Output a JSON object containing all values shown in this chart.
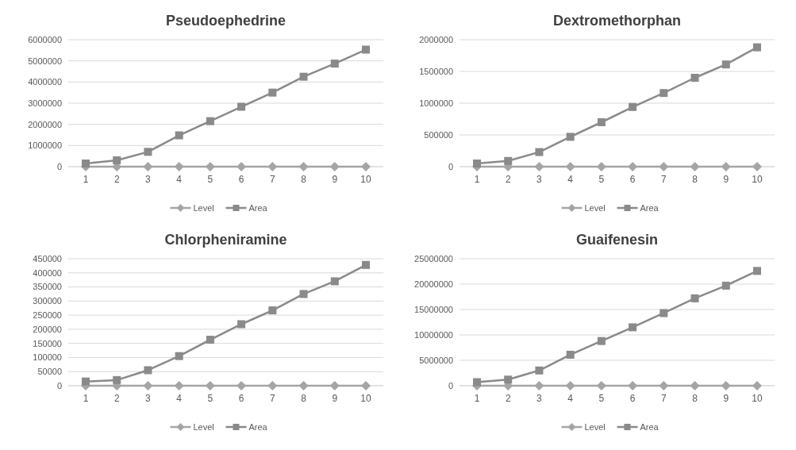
{
  "chart_data": [
    {
      "type": "line",
      "title": "Pseudoephedrine",
      "categories": [
        "1",
        "2",
        "3",
        "4",
        "5",
        "6",
        "7",
        "8",
        "9",
        "10"
      ],
      "ylim": [
        0,
        6000000
      ],
      "yticks": [
        0,
        1000000,
        2000000,
        3000000,
        4000000,
        5000000,
        6000000
      ],
      "grid": "y",
      "legend": "bottom",
      "line_style": "solid",
      "series": [
        {
          "name": "Level",
          "color": "#a5a5a5",
          "marker": "diamond",
          "values": [
            0,
            0,
            0,
            0,
            0,
            0,
            0,
            0,
            0,
            0
          ]
        },
        {
          "name": "Area",
          "color": "#8a8a8a",
          "marker": "square",
          "values": [
            150000,
            300000,
            700000,
            1480000,
            2150000,
            2830000,
            3500000,
            4250000,
            4870000,
            5530000
          ]
        }
      ]
    },
    {
      "type": "line",
      "title": "Dextromethorphan",
      "categories": [
        "1",
        "2",
        "3",
        "4",
        "5",
        "6",
        "7",
        "8",
        "9",
        "10"
      ],
      "ylim": [
        0,
        2000000
      ],
      "yticks": [
        0,
        500000,
        1000000,
        1500000,
        2000000
      ],
      "grid": "y",
      "legend": "bottom",
      "line_style": "solid",
      "series": [
        {
          "name": "Level",
          "color": "#a5a5a5",
          "marker": "diamond",
          "values": [
            0,
            0,
            0,
            0,
            0,
            0,
            0,
            0,
            0,
            0
          ]
        },
        {
          "name": "Area",
          "color": "#8a8a8a",
          "marker": "square",
          "values": [
            50000,
            90000,
            230000,
            470000,
            700000,
            940000,
            1160000,
            1400000,
            1610000,
            1880000
          ]
        }
      ]
    },
    {
      "type": "line",
      "title": "Chlorpheniramine",
      "categories": [
        "1",
        "2",
        "3",
        "4",
        "5",
        "6",
        "7",
        "8",
        "9",
        "10"
      ],
      "ylim": [
        0,
        450000
      ],
      "yticks": [
        0,
        50000,
        100000,
        150000,
        200000,
        250000,
        300000,
        350000,
        400000,
        450000
      ],
      "grid": "y",
      "legend": "bottom",
      "line_style": "solid",
      "series": [
        {
          "name": "Level",
          "color": "#a5a5a5",
          "marker": "diamond",
          "values": [
            0,
            0,
            0,
            0,
            0,
            0,
            0,
            0,
            0,
            0
          ]
        },
        {
          "name": "Area",
          "color": "#8a8a8a",
          "marker": "square",
          "values": [
            15000,
            20000,
            55000,
            105000,
            163000,
            218000,
            267000,
            325000,
            370000,
            428000
          ]
        }
      ]
    },
    {
      "type": "line",
      "title": "Guaifenesin",
      "categories": [
        "1",
        "2",
        "3",
        "4",
        "5",
        "6",
        "7",
        "8",
        "9",
        "10"
      ],
      "ylim": [
        0,
        25000000
      ],
      "yticks": [
        0,
        5000000,
        10000000,
        15000000,
        20000000,
        25000000
      ],
      "grid": "y",
      "legend": "bottom",
      "line_style": "solid",
      "series": [
        {
          "name": "Level",
          "color": "#a5a5a5",
          "marker": "diamond",
          "values": [
            0,
            0,
            0,
            0,
            0,
            0,
            0,
            0,
            0,
            0
          ]
        },
        {
          "name": "Area",
          "color": "#8a8a8a",
          "marker": "square",
          "values": [
            700000,
            1200000,
            3000000,
            6100000,
            8800000,
            11500000,
            14300000,
            17200000,
            19700000,
            22600000
          ]
        }
      ]
    }
  ]
}
